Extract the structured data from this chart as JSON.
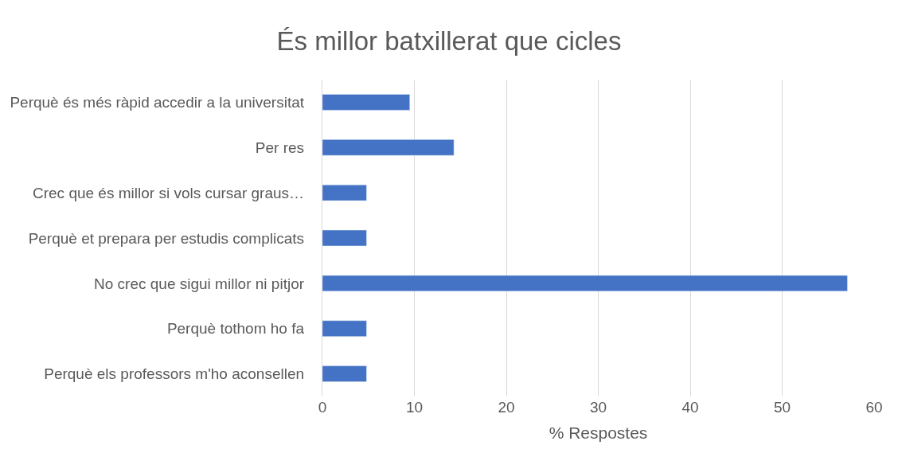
{
  "chart_data": {
    "type": "bar",
    "orientation": "horizontal",
    "title": "És millor batxillerat que cicles",
    "xlabel": "% Respostes",
    "categories": [
      "Perquè és més ràpid accedir a la universitat",
      "Per res",
      "Crec que és millor si vols cursar graus…",
      "Perquè et prepara per estudis complicats",
      "No crec que sigui millor ni pitjor",
      "Perquè tothom ho fa",
      "Perquè els professors m'ho aconsellen"
    ],
    "values": [
      9.5,
      14.3,
      4.8,
      4.8,
      57.1,
      4.8,
      4.8
    ],
    "color": "#4472c4",
    "xlim": [
      0,
      60
    ],
    "xticks": [
      0,
      10,
      20,
      30,
      40,
      50,
      60
    ],
    "grid": "x",
    "legend": false
  }
}
